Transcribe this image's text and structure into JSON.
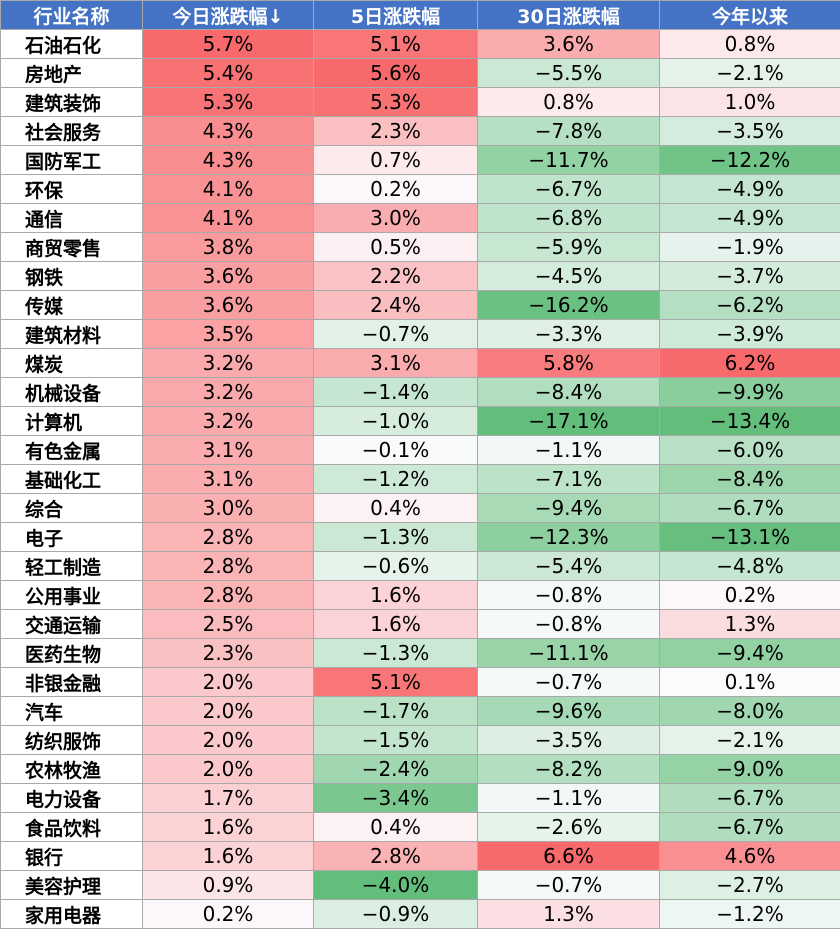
{
  "table": {
    "headers": [
      "行业名称",
      "今日涨跌幅↓",
      "5日涨跌幅",
      "30日涨跌幅",
      "今年以来"
    ],
    "colors": {
      "header_bg": "#4472c4",
      "positive_max": "#f8696b",
      "negative_max": "#63be7b",
      "neutral": "#fcfcff"
    }
  },
  "chart_data": {
    "type": "table",
    "columns": [
      "行业名称",
      "今日涨跌幅↓",
      "5日涨跌幅",
      "30日涨跌幅",
      "今年以来"
    ],
    "unit": "%",
    "rows": [
      {
        "industry": "石油石化",
        "today": 5.7,
        "d5": 5.1,
        "d30": 3.6,
        "ytd": 0.8
      },
      {
        "industry": "房地产",
        "today": 5.4,
        "d5": 5.6,
        "d30": -5.5,
        "ytd": -2.1
      },
      {
        "industry": "建筑装饰",
        "today": 5.3,
        "d5": 5.3,
        "d30": 0.8,
        "ytd": 1.0
      },
      {
        "industry": "社会服务",
        "today": 4.3,
        "d5": 2.3,
        "d30": -7.8,
        "ytd": -3.5
      },
      {
        "industry": "国防军工",
        "today": 4.3,
        "d5": 0.7,
        "d30": -11.7,
        "ytd": -12.2
      },
      {
        "industry": "环保",
        "today": 4.1,
        "d5": 0.2,
        "d30": -6.7,
        "ytd": -4.9
      },
      {
        "industry": "通信",
        "today": 4.1,
        "d5": 3.0,
        "d30": -6.8,
        "ytd": -4.9
      },
      {
        "industry": "商贸零售",
        "today": 3.8,
        "d5": 0.5,
        "d30": -5.9,
        "ytd": -1.9
      },
      {
        "industry": "钢铁",
        "today": 3.6,
        "d5": 2.2,
        "d30": -4.5,
        "ytd": -3.7
      },
      {
        "industry": "传媒",
        "today": 3.6,
        "d5": 2.4,
        "d30": -16.2,
        "ytd": -6.2
      },
      {
        "industry": "建筑材料",
        "today": 3.5,
        "d5": -0.7,
        "d30": -3.3,
        "ytd": -3.9
      },
      {
        "industry": "煤炭",
        "today": 3.2,
        "d5": 3.1,
        "d30": 5.8,
        "ytd": 6.2
      },
      {
        "industry": "机械设备",
        "today": 3.2,
        "d5": -1.4,
        "d30": -8.4,
        "ytd": -9.9
      },
      {
        "industry": "计算机",
        "today": 3.2,
        "d5": -1.0,
        "d30": -17.1,
        "ytd": -13.4
      },
      {
        "industry": "有色金属",
        "today": 3.1,
        "d5": -0.1,
        "d30": -1.1,
        "ytd": -6.0
      },
      {
        "industry": "基础化工",
        "today": 3.1,
        "d5": -1.2,
        "d30": -7.1,
        "ytd": -8.4
      },
      {
        "industry": "综合",
        "today": 3.0,
        "d5": 0.4,
        "d30": -9.4,
        "ytd": -6.7
      },
      {
        "industry": "电子",
        "today": 2.8,
        "d5": -1.3,
        "d30": -12.3,
        "ytd": -13.1
      },
      {
        "industry": "轻工制造",
        "today": 2.8,
        "d5": -0.6,
        "d30": -5.4,
        "ytd": -4.8
      },
      {
        "industry": "公用事业",
        "today": 2.8,
        "d5": 1.6,
        "d30": -0.8,
        "ytd": 0.2
      },
      {
        "industry": "交通运输",
        "today": 2.5,
        "d5": 1.6,
        "d30": -0.8,
        "ytd": 1.3
      },
      {
        "industry": "医药生物",
        "today": 2.3,
        "d5": -1.3,
        "d30": -11.1,
        "ytd": -9.4
      },
      {
        "industry": "非银金融",
        "today": 2.0,
        "d5": 5.1,
        "d30": -0.7,
        "ytd": 0.1
      },
      {
        "industry": "汽车",
        "today": 2.0,
        "d5": -1.7,
        "d30": -9.6,
        "ytd": -8.0
      },
      {
        "industry": "纺织服饰",
        "today": 2.0,
        "d5": -1.5,
        "d30": -3.5,
        "ytd": -2.1
      },
      {
        "industry": "农林牧渔",
        "today": 2.0,
        "d5": -2.4,
        "d30": -8.2,
        "ytd": -9.0
      },
      {
        "industry": "电力设备",
        "today": 1.7,
        "d5": -3.4,
        "d30": -1.1,
        "ytd": -6.7
      },
      {
        "industry": "食品饮料",
        "today": 1.6,
        "d5": 0.4,
        "d30": -2.6,
        "ytd": -6.7
      },
      {
        "industry": "银行",
        "today": 1.6,
        "d5": 2.8,
        "d30": 6.6,
        "ytd": 4.6
      },
      {
        "industry": "美容护理",
        "today": 0.9,
        "d5": -4.0,
        "d30": -0.7,
        "ytd": -2.7
      },
      {
        "industry": "家用电器",
        "today": 0.2,
        "d5": -0.9,
        "d30": 1.3,
        "ytd": -1.2
      }
    ]
  }
}
